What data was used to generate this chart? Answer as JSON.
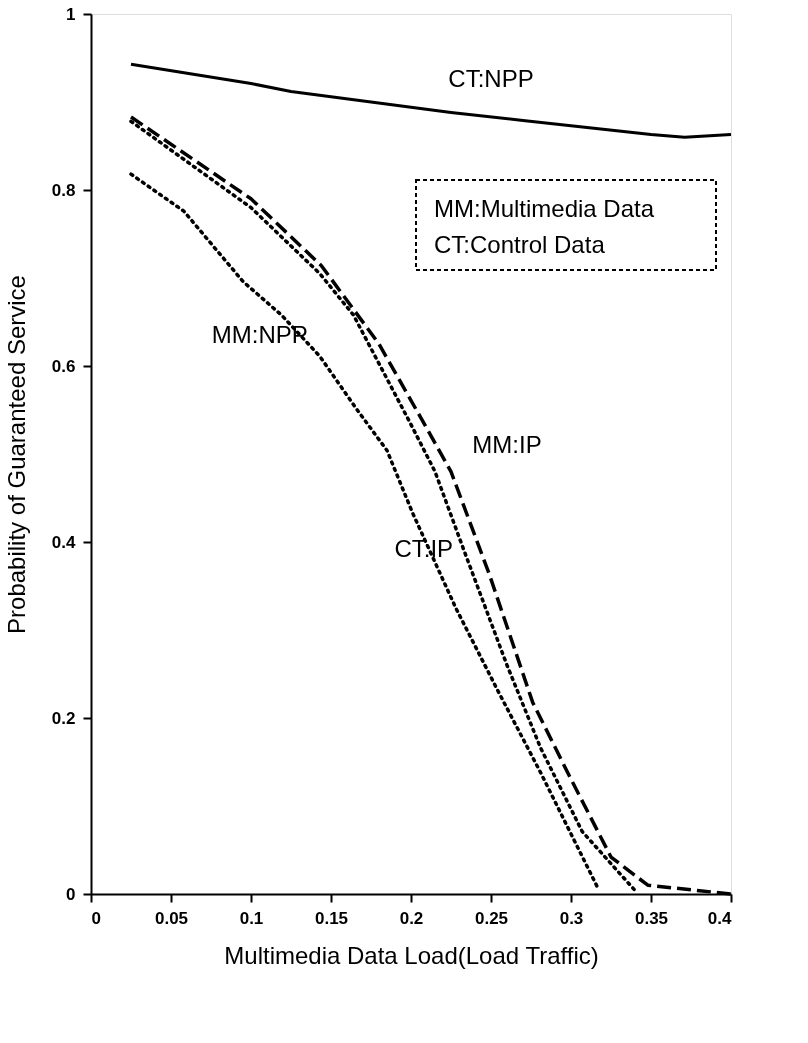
{
  "chart_data": {
    "type": "line",
    "xlabel": "Multimedia Data Load(Load Traffic)",
    "ylabel": "Probability of Guaranteed Service",
    "xlim": [
      0,
      0.4
    ],
    "xticks": [
      0,
      0.05,
      0.1,
      0.15,
      0.2,
      0.25,
      0.3,
      0.35,
      0.4
    ],
    "ylim": [
      0,
      1
    ],
    "yticks": [
      0,
      0.2,
      0.4,
      0.6,
      0.8,
      1
    ],
    "grid": false,
    "marker": "none",
    "series": [
      {
        "name": "CT:NPP",
        "color": "#000000",
        "line_style": "solid",
        "x": [
          0.025,
          0.1,
          0.125,
          0.225,
          0.27,
          0.35,
          0.371,
          0.4
        ],
        "values": [
          0.943,
          0.921,
          0.912,
          0.888,
          0.879,
          0.863,
          0.86,
          0.863
        ]
      },
      {
        "name": "MM:IP",
        "color": "#000000",
        "line_style": "dashed",
        "x": [
          0.025,
          0.1,
          0.144,
          0.18,
          0.209,
          0.225,
          0.249,
          0.276,
          0.299,
          0.325,
          0.348,
          0.4
        ],
        "values": [
          0.883,
          0.79,
          0.714,
          0.625,
          0.532,
          0.48,
          0.363,
          0.218,
          0.134,
          0.042,
          0.01,
          0
        ]
      },
      {
        "name": "CT:IP",
        "color": "#000000",
        "line_style": "dotted",
        "x": [
          0.025,
          0.1,
          0.143,
          0.164,
          0.199,
          0.215,
          0.233,
          0.26,
          0.281,
          0.307,
          0.34
        ],
        "values": [
          0.878,
          0.78,
          0.705,
          0.658,
          0.537,
          0.48,
          0.391,
          0.26,
          0.166,
          0.071,
          0.004
        ]
      },
      {
        "name": "MM:NPP",
        "color": "#000000",
        "line_style": "dotted",
        "x": [
          0.025,
          0.058,
          0.095,
          0.119,
          0.143,
          0.166,
          0.185,
          0.201,
          0.228,
          0.254,
          0.281,
          0.317
        ],
        "values": [
          0.818,
          0.776,
          0.696,
          0.658,
          0.611,
          0.551,
          0.504,
          0.433,
          0.325,
          0.232,
          0.138,
          0.006
        ]
      }
    ],
    "annotations": [
      "MM:Multimedia Data",
      "CT:Control Data"
    ]
  }
}
